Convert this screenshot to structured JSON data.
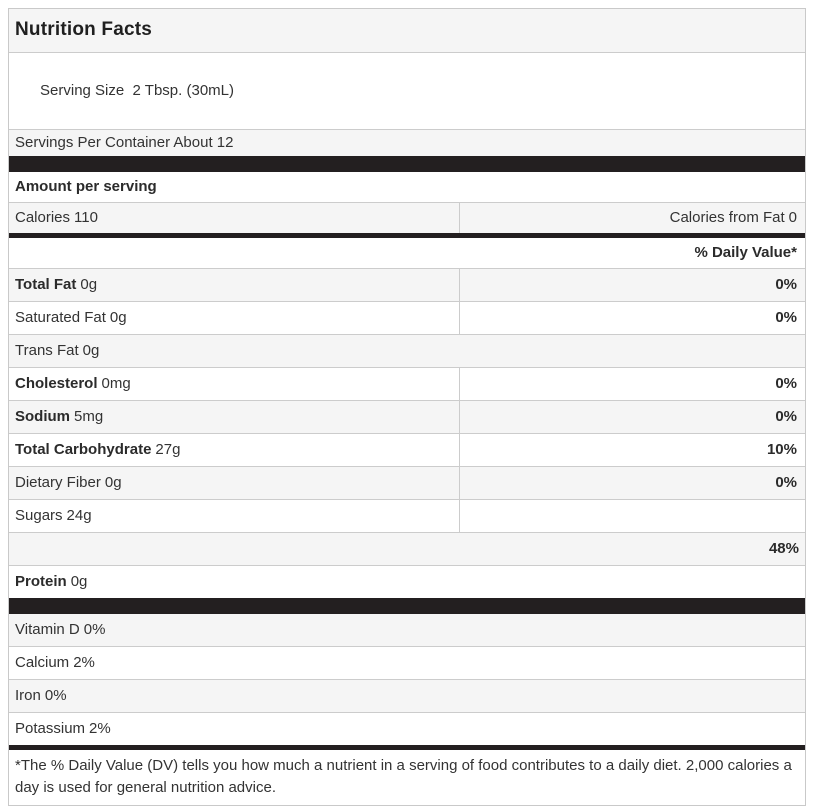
{
  "title": "Nutrition Facts",
  "serving": {
    "size": "Serving Size  2 Tbsp. (30mL)",
    "per_container": "Servings Per Container About 12"
  },
  "amount_per_serving": "Amount per serving",
  "calories": {
    "name": "Calories",
    "value": "110"
  },
  "calories_from_fat": {
    "name": "Calories from Fat",
    "value": "0"
  },
  "daily_value_header": "% Daily Value*",
  "nutrients": [
    {
      "name": "Total Fat",
      "amount": "0g",
      "percent": "0%"
    },
    {
      "name": "Saturated Fat",
      "amount": "0g",
      "percent": "0%"
    },
    {
      "name": "Trans Fat",
      "amount": "0g",
      "percent": ""
    },
    {
      "name": "Cholesterol",
      "amount": "0mg",
      "percent": "0%"
    },
    {
      "name": "Sodium",
      "amount": "5mg",
      "percent": "0%"
    },
    {
      "name": "Total Carbohydrate",
      "amount": "27g",
      "percent": "10%"
    },
    {
      "name": "Dietary Fiber",
      "amount": "0g",
      "percent": "0%"
    },
    {
      "name": "Sugars",
      "amount": "24g",
      "percent": ""
    },
    {
      "name": "",
      "amount": "",
      "percent": "48%"
    },
    {
      "name": "Protein",
      "amount": "0g",
      "percent": ""
    }
  ],
  "micronutrients": [
    {
      "name": "Vitamin D",
      "value": "0%"
    },
    {
      "name": "Calcium",
      "value": "2%"
    },
    {
      "name": "Iron",
      "value": "0%"
    },
    {
      "name": "Potassium",
      "value": "2%"
    }
  ],
  "footnote": "*The % Daily Value (DV) tells you how much a nutrient in a serving of food contributes to a daily diet. 2,000 calories a day is used for general nutrition advice.",
  "colors": {
    "bar": "#231f20",
    "row_shade": "#f5f5f5",
    "border": "#cccccc",
    "text": "#333333"
  }
}
